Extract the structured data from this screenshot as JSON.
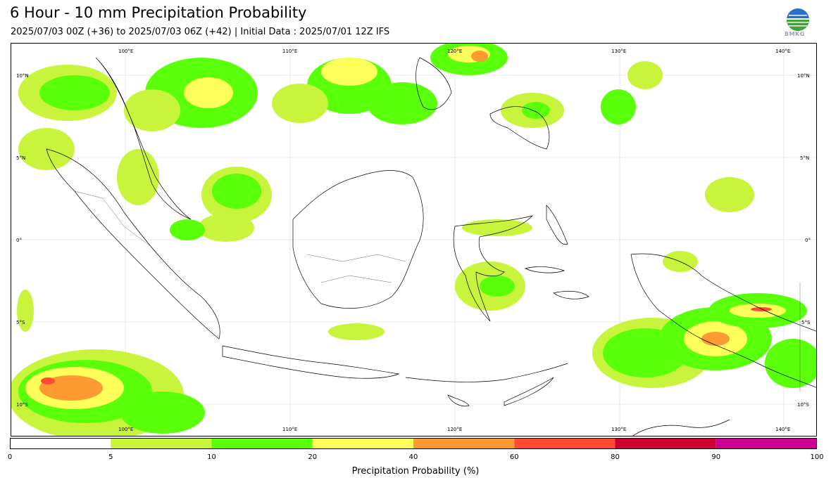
{
  "title": "6 Hour - 10 mm Precipitation Probability",
  "subtitle": "2025/07/03 00Z (+36) to 2025/07/03 06Z (+42) | Initial Data : 2025/07/01 12Z IFS",
  "logo": {
    "icon": "bmkg-globe-icon",
    "text": "BMKG"
  },
  "map": {
    "lon_labels": [
      "100°E",
      "110°E",
      "120°E",
      "130°E",
      "140°E"
    ],
    "lat_labels_left": [
      "10°N",
      "5°N",
      "0°",
      "5°S",
      "10°S"
    ],
    "lat_labels_right": [
      "10°N",
      "5°N",
      "0°",
      "5°S",
      "10°S"
    ]
  },
  "colorbar": {
    "label": "Precipitation Probability (%)",
    "ticks": [
      "0",
      "5",
      "10",
      "20",
      "40",
      "60",
      "80",
      "90",
      "100"
    ],
    "colors": [
      "#ffffff",
      "#c8f53c",
      "#5aff0a",
      "#ffff5a",
      "#ff9a32",
      "#ff4b32",
      "#cd0032",
      "#cd0096"
    ]
  }
}
